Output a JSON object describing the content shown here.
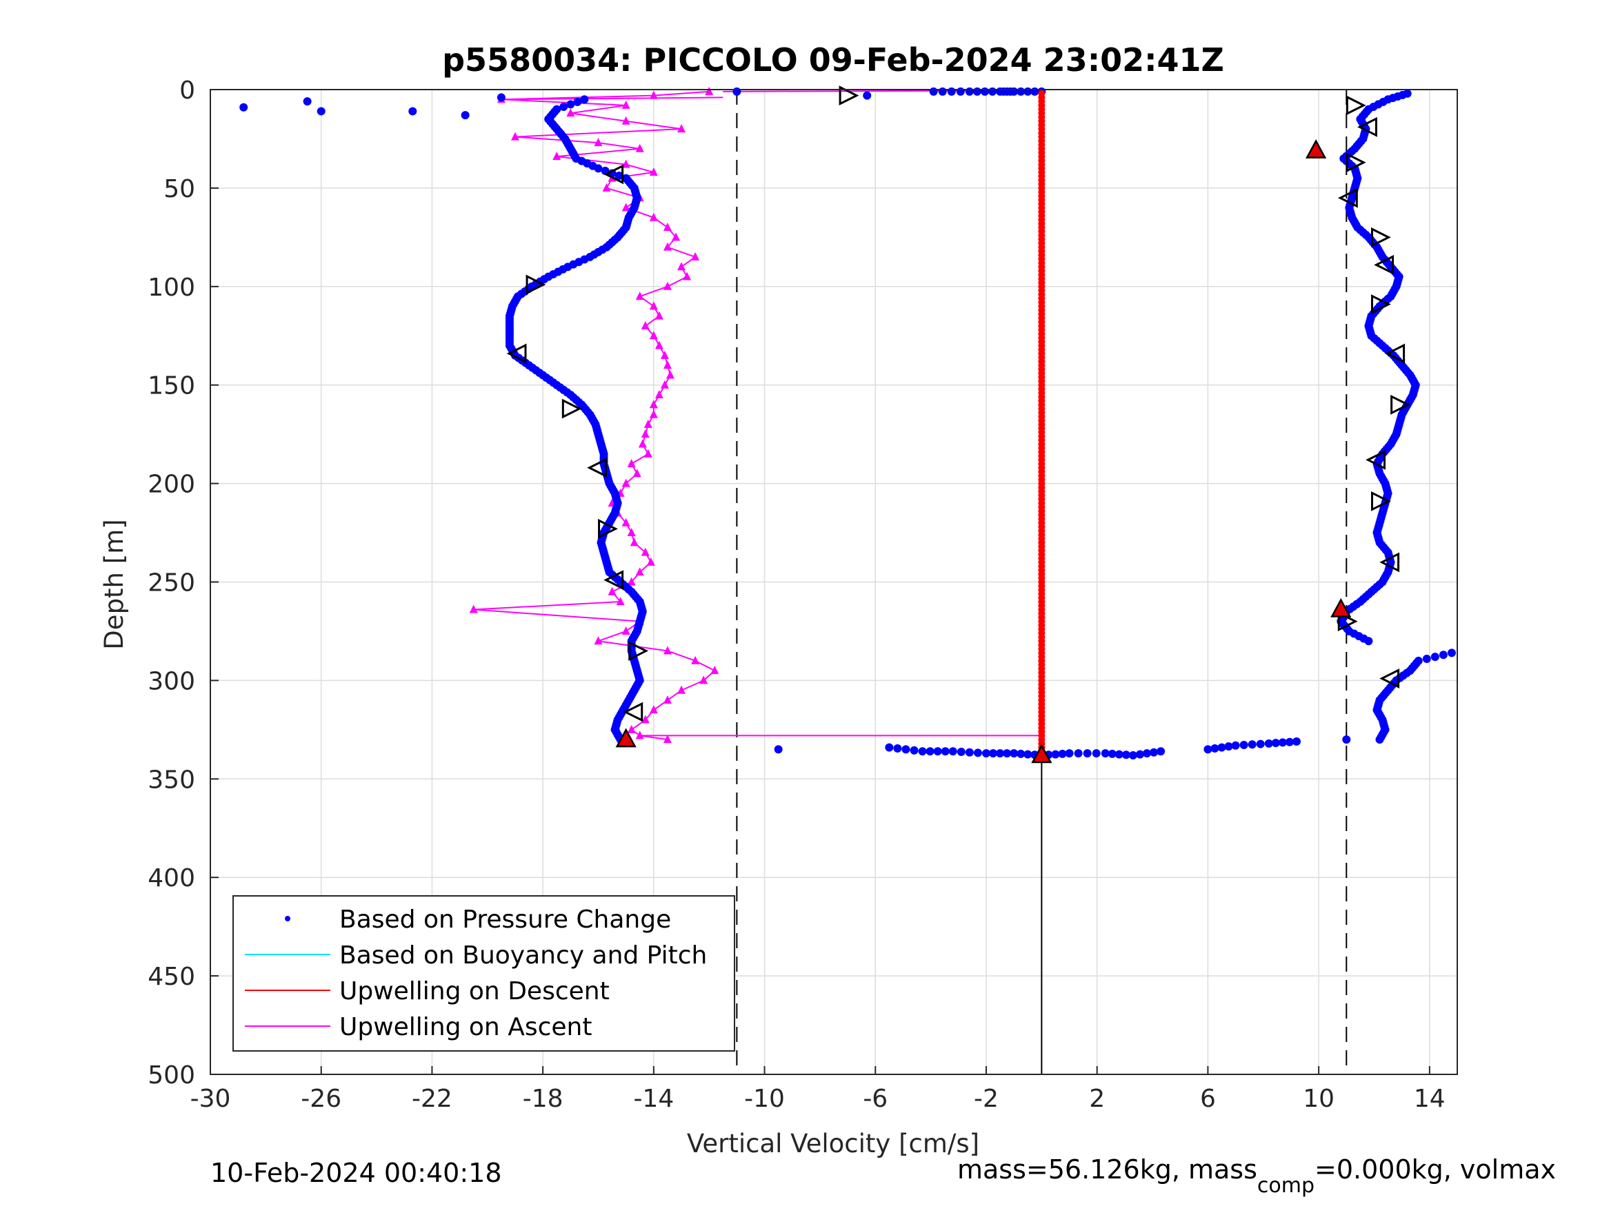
{
  "chart_data": {
    "type": "scatter",
    "title": "p5580034: PICCOLO 09-Feb-2024 23:02:41Z",
    "xlabel": "Vertical Velocity [cm/s]",
    "ylabel": "Depth [m]",
    "xlim": [
      -30,
      15
    ],
    "ylim": [
      0,
      500
    ],
    "y_reversed": true,
    "grid": true,
    "xticks": [
      -30,
      -26,
      -22,
      -18,
      -14,
      -10,
      -6,
      -2,
      2,
      6,
      10,
      14
    ],
    "xtick_labels": [
      "-30",
      "-26",
      "-22",
      "-18",
      "-14",
      "-10",
      "-6",
      "-2",
      "2",
      "6",
      "10",
      "14"
    ],
    "yticks": [
      0,
      50,
      100,
      150,
      200,
      250,
      300,
      350,
      400,
      450,
      500
    ],
    "ytick_labels": [
      "0",
      "50",
      "100",
      "150",
      "200",
      "250",
      "300",
      "350",
      "400",
      "450",
      "500"
    ],
    "legend_position": "bottom-left",
    "colors": {
      "pressure": "#0000ff",
      "buoyancy": "#00e5ee",
      "upwelling_descent": "#ff0000",
      "upwelling_ascent": "#ff00ff",
      "reference": "#000000"
    },
    "reference_lines": {
      "dashed_x": [
        -11,
        11
      ],
      "solid_x": [
        0
      ],
      "solid_x_depth_from": 338
    },
    "series": [
      {
        "name": "Based on Pressure Change",
        "marker": "dot",
        "descent": {
          "depth": [
            1,
            5,
            10,
            15,
            20,
            25,
            30,
            35,
            40,
            45,
            50,
            55,
            60,
            65,
            70,
            75,
            80,
            85,
            90,
            95,
            100,
            105,
            110,
            115,
            120,
            125,
            130,
            135,
            140,
            145,
            150,
            155,
            160,
            165,
            170,
            175,
            180,
            185,
            190,
            195,
            200,
            205,
            210,
            215,
            220,
            225,
            230,
            235,
            240,
            245,
            250,
            255,
            260,
            265,
            270,
            275,
            280,
            285,
            290,
            295,
            300,
            305,
            310,
            315,
            320,
            325,
            330,
            335,
            338
          ],
          "velocity": [
            -11,
            -16.5,
            -17.5,
            -17.8,
            -17.5,
            -17.2,
            -17,
            -16.8,
            -16,
            -15,
            -14.7,
            -14.6,
            -14.7,
            -14.9,
            -15,
            -15.3,
            -15.7,
            -16.3,
            -17.1,
            -17.8,
            -18.4,
            -18.9,
            -19.1,
            -19.2,
            -19.2,
            -19.2,
            -19.2,
            -19,
            -18.5,
            -18,
            -17.5,
            -17,
            -16.6,
            -16.3,
            -16.1,
            -16,
            -15.9,
            -15.8,
            -15.8,
            -15.7,
            -15.6,
            -15.4,
            -15.3,
            -15.4,
            -15.6,
            -15.8,
            -15.9,
            -15.8,
            -15.7,
            -15.6,
            -15.2,
            -14.8,
            -14.5,
            -14.4,
            -14.5,
            -14.6,
            -14.8,
            -14.8,
            -14.7,
            -14.6,
            -14.5,
            -14.7,
            -14.9,
            -15.1,
            -15.3,
            -15.4,
            -15.2,
            -9.5,
            0
          ]
        },
        "surface_scatter": {
          "depth": [
            4,
            6,
            9,
            11,
            11,
            13,
            3,
            1,
            1,
            1,
            1,
            1
          ],
          "velocity": [
            -19.5,
            -26.5,
            -28.8,
            -26,
            -22.7,
            -20.8,
            -6.3,
            -3.9,
            -2.6,
            -1.5,
            -1,
            0
          ]
        },
        "bottom_scatter": {
          "depth": [
            334,
            336,
            336,
            337,
            337,
            338,
            337,
            337,
            338,
            336,
            335,
            333,
            332,
            331,
            330
          ],
          "velocity": [
            -5.5,
            -4.3,
            -3.2,
            -2,
            -1,
            0,
            1,
            2.3,
            3.3,
            4.3,
            6,
            7,
            8.2,
            9.2,
            11
          ]
        },
        "ascent": {
          "depth": [
            330,
            325,
            320,
            315,
            310,
            305,
            300,
            295,
            290,
            286,
            280,
            275,
            270,
            265,
            260,
            255,
            250,
            245,
            240,
            235,
            230,
            225,
            220,
            215,
            210,
            205,
            200,
            195,
            190,
            185,
            180,
            175,
            170,
            165,
            160,
            155,
            150,
            145,
            140,
            135,
            130,
            125,
            120,
            115,
            110,
            105,
            100,
            95,
            90,
            85,
            80,
            75,
            70,
            65,
            60,
            55,
            50,
            45,
            40,
            35,
            30,
            25,
            20,
            15,
            10,
            5,
            2
          ],
          "velocity": [
            12.2,
            12.4,
            12.3,
            12.1,
            12.2,
            12.5,
            12.8,
            13.3,
            13.6,
            14.8,
            11.8,
            11.1,
            10.8,
            11,
            11.5,
            11.9,
            12.3,
            12.5,
            12.6,
            12.5,
            12.2,
            12.1,
            12.2,
            12.3,
            12.4,
            12.5,
            12.4,
            12.2,
            12.1,
            12.3,
            12.6,
            12.8,
            12.9,
            13,
            13.2,
            13.4,
            13.5,
            13.3,
            13,
            12.7,
            12.3,
            11.9,
            11.8,
            11.9,
            12.2,
            12.6,
            12.8,
            12.9,
            12.6,
            12.3,
            12.1,
            11.8,
            11.4,
            11.2,
            11.1,
            11.2,
            11.3,
            11.4,
            11.3,
            10.9,
            11.3,
            11.6,
            11.7,
            11.5,
            11.8,
            12.5,
            13.2
          ]
        }
      },
      {
        "name": "Based on Buoyancy and Pitch",
        "marker": "line",
        "depth": [],
        "velocity": []
      },
      {
        "name": "Upwelling on Descent",
        "marker": "line+dot",
        "depth": [
          2,
          338
        ],
        "velocity": [
          0,
          0
        ]
      },
      {
        "name": "Upwelling on Ascent",
        "marker": "triangle",
        "depth": [
          1,
          3,
          5,
          8,
          12,
          16,
          20,
          24,
          27,
          30,
          34,
          38,
          42,
          45,
          50,
          55,
          60,
          65,
          70,
          75,
          80,
          85,
          90,
          95,
          100,
          105,
          110,
          115,
          120,
          125,
          130,
          135,
          140,
          145,
          150,
          155,
          160,
          165,
          170,
          175,
          180,
          185,
          190,
          195,
          200,
          205,
          210,
          215,
          220,
          225,
          230,
          235,
          240,
          245,
          250,
          255,
          260,
          264,
          270,
          275,
          280,
          285,
          290,
          295,
          300,
          305,
          310,
          315,
          320,
          325,
          328,
          330
        ],
        "velocity": [
          -12,
          -14,
          -19.5,
          -15,
          -17,
          -15,
          -13,
          -19,
          -16,
          -14.5,
          -17.5,
          -15,
          -14,
          -15.5,
          -15.7,
          -14.5,
          -15,
          -14,
          -13.5,
          -13.2,
          -13.5,
          -12.5,
          -13,
          -12.8,
          -13.5,
          -14.5,
          -14,
          -13.8,
          -14.3,
          -14,
          -13.8,
          -13.6,
          -13.5,
          -13.4,
          -13.6,
          -13.8,
          -14,
          -14,
          -14.2,
          -14.3,
          -14.4,
          -14.2,
          -14.8,
          -14.6,
          -15,
          -15.2,
          -15.5,
          -15.3,
          -15,
          -14.8,
          -14.7,
          -14.3,
          -14.1,
          -14.5,
          -14.8,
          -15.5,
          -15.2,
          -20.5,
          -14.5,
          -15,
          -16,
          -13.5,
          -12.5,
          -11.8,
          -12.2,
          -13,
          -13.5,
          -14,
          -14.3,
          -14.8,
          -14.5,
          -13.5
        ],
        "connector_to_zero_depth": 328
      }
    ],
    "markers": {
      "open_triangles": {
        "depth": [
          3,
          43,
          99,
          134,
          162,
          192,
          223,
          249,
          285,
          316,
          8,
          19,
          37,
          55,
          75,
          89,
          109,
          134,
          160,
          188,
          209,
          240,
          270,
          299
        ],
        "velocity": [
          -7,
          -15.4,
          -18.3,
          -18.9,
          -17,
          -16,
          -15.7,
          -15.4,
          -14.6,
          -14.7,
          11.3,
          11.8,
          11.3,
          11.1,
          12.2,
          12.4,
          12.2,
          12.8,
          12.9,
          12.1,
          12.2,
          12.6,
          11,
          12.6
        ]
      },
      "red_triangles": {
        "depth": [
          330,
          31,
          264,
          338
        ],
        "velocity": [
          -15,
          9.9,
          10.8,
          0
        ]
      }
    }
  },
  "footer": {
    "timestamp": "10-Feb-2024 00:40:18",
    "mass_prefix": "mass=56.126kg, mass",
    "mass_sub": "comp",
    "mass_suffix": "=0.000kg, volmax"
  }
}
